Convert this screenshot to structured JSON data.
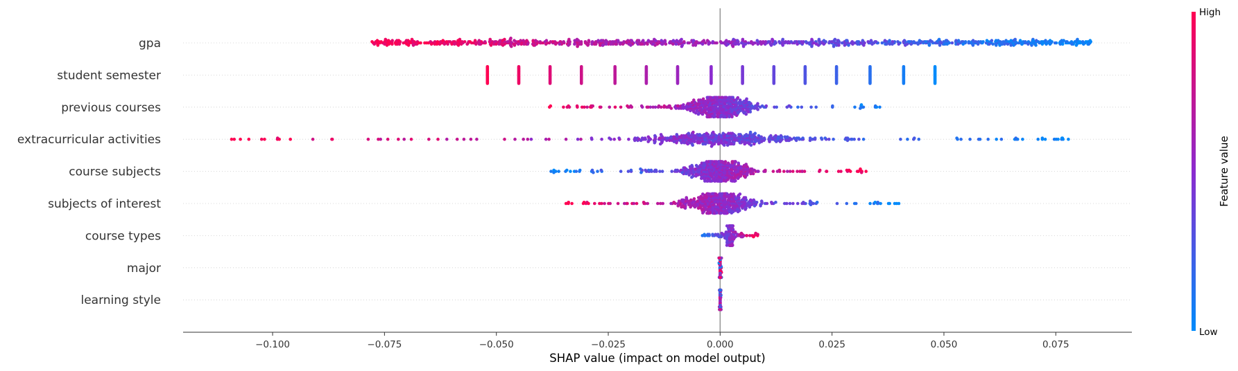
{
  "chart_data": {
    "type": "scatter",
    "subtype": "shap-beeswarm",
    "xlabel": "SHAP value (impact on model output)",
    "xlim": [
      -0.12,
      0.092
    ],
    "xticks": [
      -0.1,
      -0.075,
      -0.05,
      -0.025,
      0.0,
      0.025,
      0.05,
      0.075
    ],
    "xtick_labels": [
      "−0.100",
      "−0.075",
      "−0.050",
      "−0.025",
      "0.000",
      "0.025",
      "0.050",
      "0.075"
    ],
    "zero_line": 0.0,
    "grid": false,
    "colorbar": {
      "title": "Feature value",
      "high_label": "High",
      "low_label": "Low",
      "high_color": "#ff0052",
      "mid_color": "#8b2bcf",
      "low_color": "#008bfb",
      "placement": "right"
    },
    "features": [
      {
        "name": "gpa",
        "kind": "continuous",
        "min": -0.078,
        "max": 0.083,
        "high_side": "negative",
        "spread": "wide"
      },
      {
        "name": "student semester",
        "kind": "discrete",
        "values": [
          -0.052,
          -0.045,
          -0.038,
          -0.031,
          -0.0235,
          -0.0165,
          -0.0095,
          -0.002,
          0.005,
          0.012,
          0.019,
          0.026,
          0.0335,
          0.041,
          0.048
        ]
      },
      {
        "name": "previous courses",
        "kind": "continuous",
        "min": -0.039,
        "max": 0.037,
        "high_side": "negative",
        "spread": "center-heavy"
      },
      {
        "name": "extracurricular activities",
        "kind": "continuous",
        "min": -0.11,
        "max": 0.078,
        "high_side": "negative",
        "spread": "center-heavy"
      },
      {
        "name": "course subjects",
        "kind": "continuous",
        "min": -0.038,
        "max": 0.0335,
        "high_side": "positive",
        "spread": "center-heavy"
      },
      {
        "name": "subjects of interest",
        "kind": "continuous",
        "min": -0.035,
        "max": 0.04,
        "high_side": "negative",
        "spread": "center-heavy"
      },
      {
        "name": "course types",
        "kind": "continuous",
        "min": -0.004,
        "max": 0.0085,
        "high_side": "positive",
        "spread": "narrow"
      },
      {
        "name": "major",
        "kind": "continuous",
        "min": -0.0003,
        "max": 0.0003,
        "high_side": "mixed",
        "spread": "narrow"
      },
      {
        "name": "learning style",
        "kind": "continuous",
        "min": -0.0002,
        "max": 0.0002,
        "high_side": "mixed",
        "spread": "narrow"
      }
    ]
  }
}
